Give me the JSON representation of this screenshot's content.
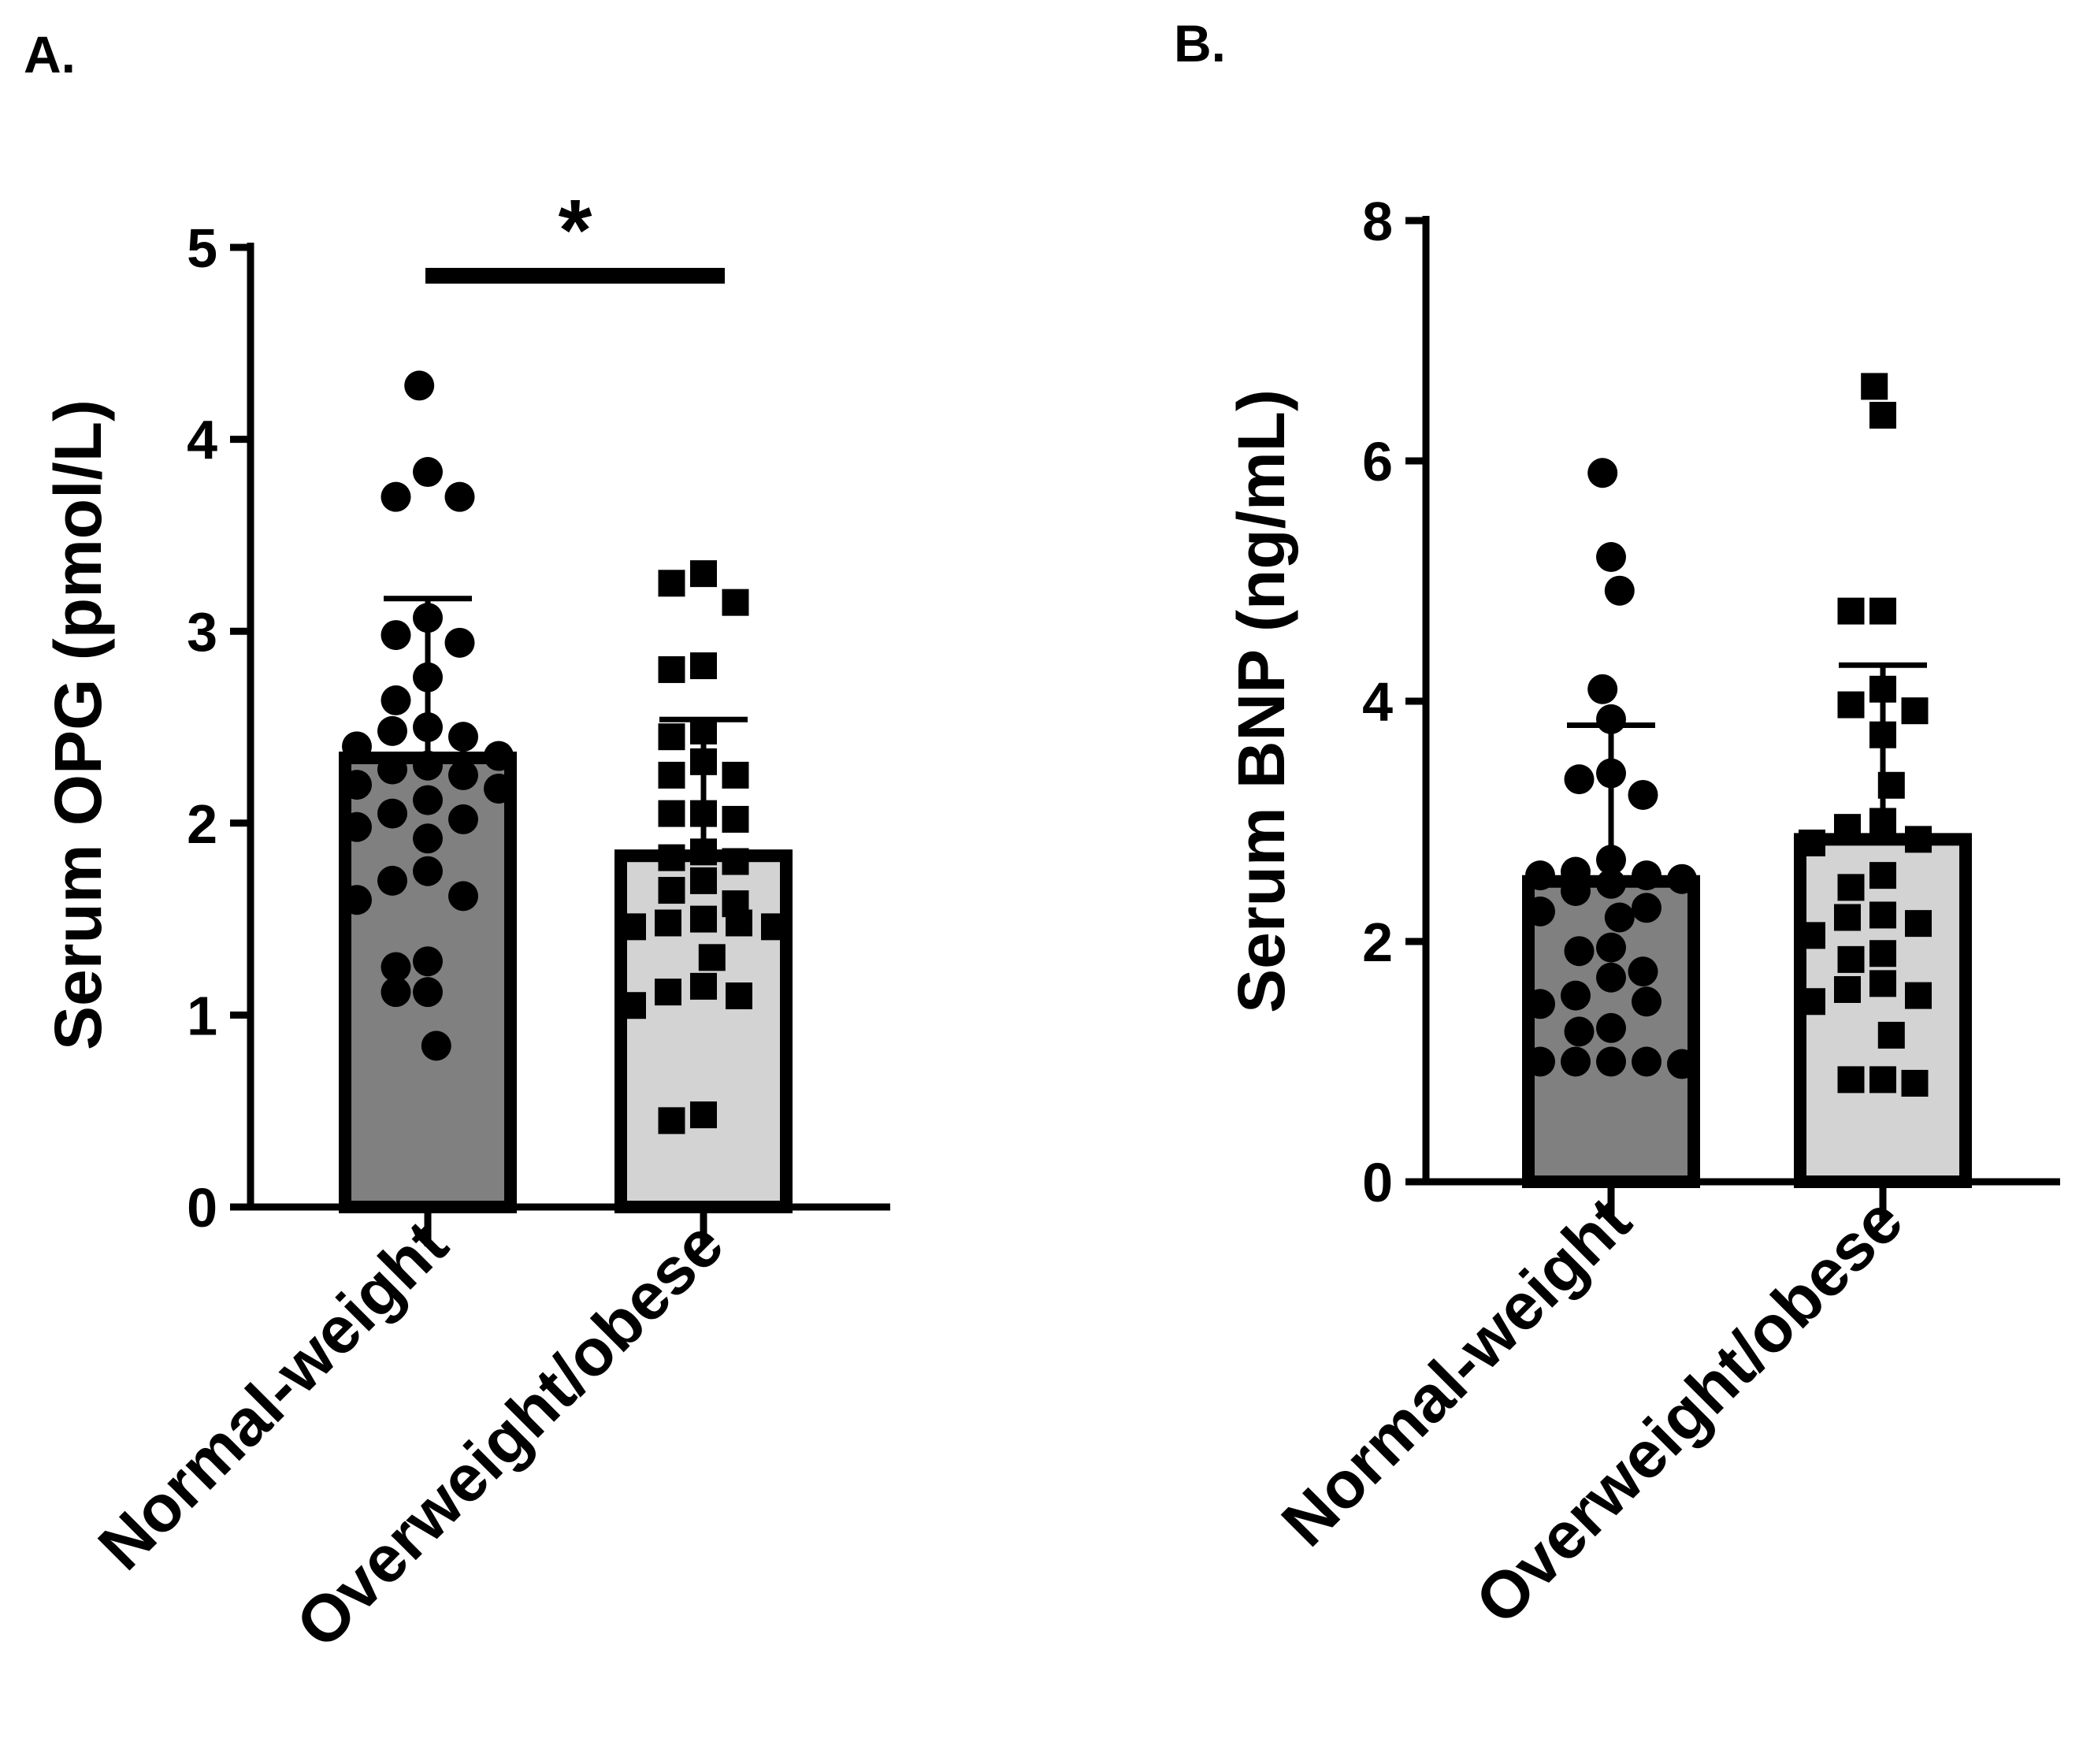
{
  "chart_data": [
    {
      "type": "bar",
      "panel_label": "A.",
      "title": "",
      "xlabel": "",
      "ylabel": "Serum OPG (pmol/L)",
      "ylim": [
        0,
        5
      ],
      "yticks": [
        "0",
        "1",
        "2",
        "3",
        "4",
        "5"
      ],
      "categories": [
        "Normal-weight",
        "Overweight/obese"
      ],
      "series": [
        {
          "name": "Normal-weight",
          "marker": "circle",
          "bar_color": "#808080",
          "mean": 2.34,
          "sd_upper": 3.17,
          "points": [
            4.28,
            3.83,
            3.7,
            3.7,
            3.07,
            2.98,
            2.94,
            2.76,
            2.64,
            2.5,
            2.48,
            2.45,
            2.4,
            2.35,
            2.3,
            2.28,
            2.25,
            2.2,
            2.18,
            2.12,
            2.05,
            2.02,
            1.98,
            1.92,
            1.75,
            1.7,
            1.62,
            1.6,
            1.28,
            1.25,
            1.12,
            1.12,
            0.84
          ]
        },
        {
          "name": "Overweight/obese",
          "marker": "square",
          "bar_color": "#d3d3d4",
          "mean": 1.83,
          "sd_upper": 2.54,
          "points": [
            3.3,
            3.25,
            3.15,
            2.82,
            2.8,
            2.48,
            2.45,
            2.32,
            2.25,
            2.25,
            2.05,
            2.05,
            2.02,
            1.85,
            1.82,
            1.8,
            1.7,
            1.65,
            1.58,
            1.5,
            1.48,
            1.48,
            1.46,
            1.46,
            1.3,
            1.15,
            1.12,
            1.1,
            1.05,
            0.48,
            0.45
          ]
        }
      ],
      "annotations": [
        {
          "text": "*",
          "between": [
            "Normal-weight",
            "Overweight/obese"
          ]
        }
      ]
    },
    {
      "type": "bar",
      "panel_label": "B.",
      "title": "",
      "xlabel": "",
      "ylabel": "Serum BNP (ng/mL)",
      "ylim": [
        0,
        8
      ],
      "yticks": [
        "0",
        "2",
        "4",
        "6",
        "8"
      ],
      "categories": [
        "Normal-weight",
        "Overweight/obese"
      ],
      "series": [
        {
          "name": "Normal-weight",
          "marker": "circle",
          "bar_color": "#808080",
          "mean": 2.5,
          "sd_upper": 3.8,
          "points": [
            5.9,
            5.2,
            4.92,
            4.1,
            3.85,
            3.4,
            3.35,
            3.22,
            2.68,
            2.58,
            2.55,
            2.55,
            2.52,
            2.48,
            2.42,
            2.28,
            2.25,
            2.2,
            1.95,
            1.92,
            1.75,
            1.7,
            1.55,
            1.5,
            1.48,
            1.28,
            1.25,
            1.0,
            1.0,
            1.0,
            1.0,
            0.98
          ]
        },
        {
          "name": "Overweight/obese",
          "marker": "square",
          "bar_color": "#d3d3d4",
          "mean": 2.85,
          "sd_upper": 4.3,
          "points": [
            6.62,
            6.38,
            4.75,
            4.75,
            4.1,
            3.97,
            3.92,
            3.72,
            3.3,
            3.0,
            2.95,
            2.85,
            2.82,
            2.55,
            2.45,
            2.22,
            2.2,
            2.15,
            2.05,
            1.9,
            1.85,
            1.65,
            1.6,
            1.55,
            1.5,
            1.22,
            0.85,
            0.85,
            0.82
          ]
        }
      ]
    }
  ]
}
